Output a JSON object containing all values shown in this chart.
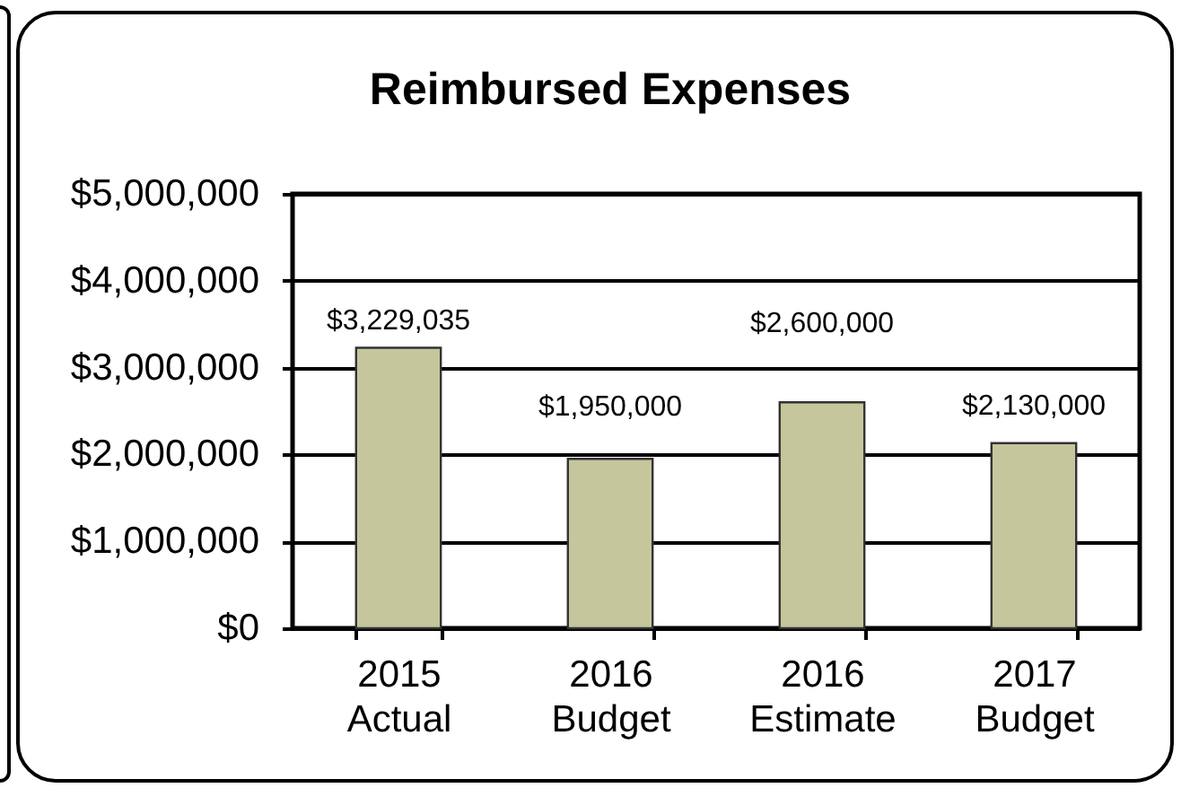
{
  "chart_data": {
    "type": "bar",
    "title": "Reimbursed Expenses",
    "categories": [
      "2015 Actual",
      "2016 Budget",
      "2016 Estimate",
      "2017 Budget"
    ],
    "values": [
      3229035,
      1950000,
      2600000,
      2130000
    ],
    "value_labels": [
      "$3,229,035",
      "$1,950,000",
      "$2,600,000",
      "$2,130,000"
    ],
    "color": "#c6c69c",
    "ylim": [
      0,
      5000000
    ],
    "yticks": [
      {
        "value": 0,
        "label": "$0"
      },
      {
        "value": 1000000,
        "label": "$1,000,000"
      },
      {
        "value": 2000000,
        "label": "$2,000,000"
      },
      {
        "value": 3000000,
        "label": "$3,000,000"
      },
      {
        "value": 4000000,
        "label": "$4,000,000"
      },
      {
        "value": 5000000,
        "label": "$5,000,000"
      }
    ],
    "grid": "y"
  }
}
